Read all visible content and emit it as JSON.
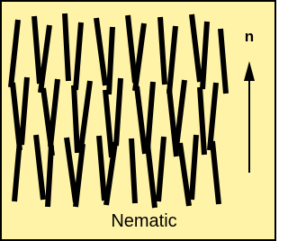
{
  "director": {
    "label": "n"
  },
  "caption": "Nematic"
}
